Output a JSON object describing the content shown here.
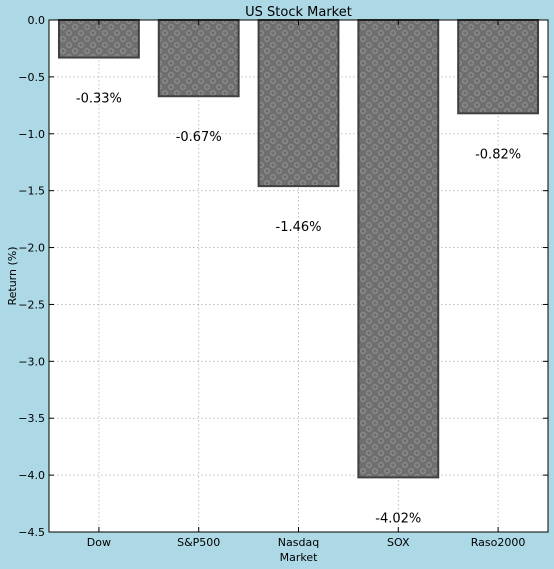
{
  "chart_data": {
    "type": "bar",
    "title": "US Stock Market",
    "xlabel": "Market",
    "ylabel": "Return (%)",
    "categories": [
      "Dow",
      "S&P500",
      "Nasdaq",
      "SOX",
      "Raso2000"
    ],
    "values": [
      -0.33,
      -0.67,
      -1.46,
      -4.02,
      -0.82
    ],
    "data_labels": [
      "-0.33%",
      "-0.67%",
      "-1.46%",
      "-4.02%",
      "-0.82%"
    ],
    "ylim": [
      -4.5,
      0.0
    ],
    "yticks": [
      0.0,
      -0.5,
      -1.0,
      -1.5,
      -2.0,
      -2.5,
      -3.0,
      -3.5,
      -4.0,
      -4.5
    ],
    "ytick_labels": [
      "0.0",
      "−0.5",
      "−1.0",
      "−1.5",
      "−2.0",
      "−2.5",
      "−3.0",
      "−3.5",
      "−4.0",
      "−4.5"
    ],
    "grid": true,
    "colors": {
      "figure_background": "#add8e6",
      "plot_background": "#ffffff",
      "bar_fill": "#6f6f6f",
      "bar_edge": "#404040",
      "hatch": "#9a9a9a",
      "grid": "#b0b0b0"
    },
    "hatch": "circles"
  }
}
